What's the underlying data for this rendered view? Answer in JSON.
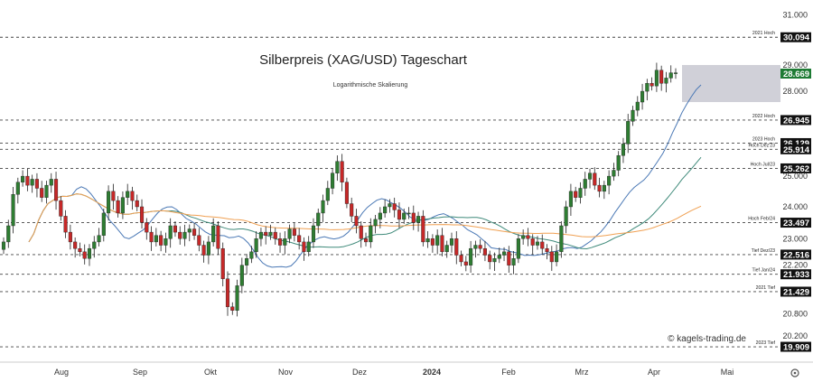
{
  "chart_data": {
    "type": "candlestick",
    "title": "Silberpreis (XAG/USD) Tageschart",
    "subtitle": "Logarithmische Skalierung",
    "watermark": "© kagels-trading.de",
    "y_scale": "log",
    "ylim": [
      19.6,
      31.4
    ],
    "y_ticks": [
      "31.000",
      "29.000",
      "28.000",
      "25.000",
      "24.000",
      "23.000",
      "22.200",
      "20.800",
      "20.200"
    ],
    "x_ticks": [
      "Aug",
      "Sep",
      "Okt",
      "Nov",
      "Dez",
      "2024",
      "Feb",
      "Mrz",
      "Apr",
      "Mai"
    ],
    "levels": [
      {
        "label": "2021 Hoch",
        "value": "30.094",
        "highlight": false
      },
      {
        "label": "",
        "value": "28.669",
        "highlight": true
      },
      {
        "label": "2022 Hoch",
        "value": "26.945",
        "highlight": false
      },
      {
        "label": "2023 Hoch",
        "value": "26.129",
        "highlight": false
      },
      {
        "label": "Hoch Dez'23",
        "value": "25.914",
        "highlight": false
      },
      {
        "label": "Hoch Jul/23",
        "value": "25.262",
        "highlight": false
      },
      {
        "label": "Hoch Feb/24",
        "value": "23.497",
        "highlight": false
      },
      {
        "label": "Tief Dez/23",
        "value": "22.516",
        "highlight": false
      },
      {
        "label": "Tief Jan/24",
        "value": "21.933",
        "highlight": false
      },
      {
        "label": "2021 Tief",
        "value": "21.429",
        "highlight": false
      },
      {
        "label": "2023 Tief",
        "value": "19.909",
        "highlight": false
      }
    ],
    "resistance_zone": [
      27.6,
      29.0
    ],
    "colors": {
      "up": "#2e7d32",
      "down": "#c62828",
      "ma_fast": "#4a78b5",
      "ma_mid": "#3f8a7a",
      "ma_slow": "#f0a052",
      "zone": "#d0d0d8",
      "highlight_box": "#1e7b34"
    },
    "series_close": [
      22.9,
      23.4,
      24.4,
      24.8,
      25.0,
      24.7,
      24.9,
      24.6,
      24.3,
      24.7,
      24.9,
      24.2,
      23.7,
      23.2,
      22.9,
      22.7,
      22.6,
      22.4,
      22.7,
      22.9,
      23.1,
      23.8,
      24.5,
      24.2,
      23.8,
      24.3,
      24.5,
      24.2,
      24.0,
      23.5,
      23.2,
      22.9,
      23.1,
      22.8,
      23.0,
      23.4,
      23.2,
      23.0,
      23.2,
      23.3,
      23.1,
      22.8,
      22.5,
      22.9,
      23.4,
      22.7,
      21.8,
      21.0,
      20.9,
      21.6,
      22.2,
      22.4,
      22.6,
      23.0,
      23.2,
      23.1,
      23.2,
      23.0,
      22.8,
      23.0,
      23.3,
      23.1,
      22.9,
      22.6,
      22.9,
      23.4,
      23.8,
      24.2,
      24.6,
      25.1,
      25.5,
      24.8,
      24.1,
      23.7,
      23.4,
      23.0,
      22.9,
      23.4,
      23.6,
      23.8,
      24.0,
      24.1,
      23.9,
      23.6,
      23.8,
      23.8,
      23.5,
      23.7,
      22.9,
      23.0,
      22.8,
      23.1,
      22.6,
      22.8,
      23.0,
      22.5,
      22.3,
      22.2,
      22.7,
      22.8,
      22.7,
      22.5,
      22.3,
      22.4,
      22.5,
      22.6,
      22.2,
      22.4,
      23.0,
      23.1,
      23.0,
      22.8,
      22.9,
      22.7,
      22.6,
      22.3,
      22.6,
      23.4,
      24.0,
      24.5,
      24.3,
      24.6,
      24.9,
      25.1,
      24.7,
      24.5,
      24.7,
      25.0,
      25.2,
      25.7,
      26.1,
      26.9,
      27.3,
      27.6,
      28.0,
      28.3,
      28.2,
      28.8,
      28.3,
      28.5,
      28.7,
      28.7
    ]
  }
}
